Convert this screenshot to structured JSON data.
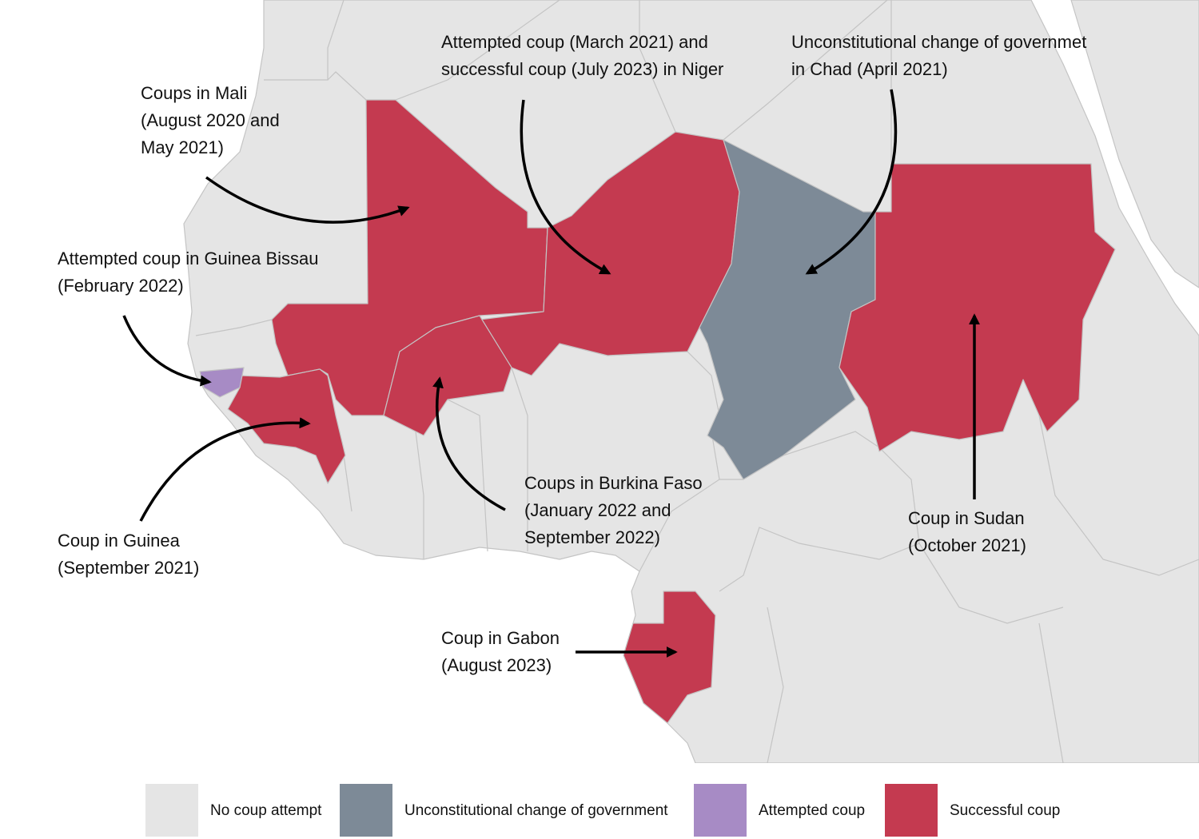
{
  "annotations": [
    {
      "lines": [
        "Coups in Mali",
        "(August 2020 and",
        "May 2021)"
      ]
    },
    {
      "lines": [
        "Attempted coup (March 2021) and",
        "successful coup (July 2023) in Niger"
      ]
    },
    {
      "lines": [
        "Unconstitutional change of governmet",
        "in Chad (April 2021)"
      ]
    },
    {
      "lines": [
        "Attempted coup in Guinea Bissau",
        "(February 2022)"
      ]
    },
    {
      "lines": [
        "Coup in Guinea",
        "(September 2021)"
      ]
    },
    {
      "lines": [
        "Coups in Burkina Faso",
        "(January 2022 and",
        "September 2022)"
      ]
    },
    {
      "lines": [
        "Coup in Sudan",
        "(October 2021)"
      ]
    },
    {
      "lines": [
        "Coup in Gabon",
        "(August 2023)"
      ]
    }
  ],
  "legend": [
    {
      "label": "No coup attempt",
      "color": "#e5e5e5"
    },
    {
      "label": "Unconstitutional change of government",
      "color": "#7d8a97"
    },
    {
      "label": "Attempted coup",
      "color": "#a78bc5"
    },
    {
      "label": "Successful coup",
      "color": "#c43a50"
    }
  ]
}
